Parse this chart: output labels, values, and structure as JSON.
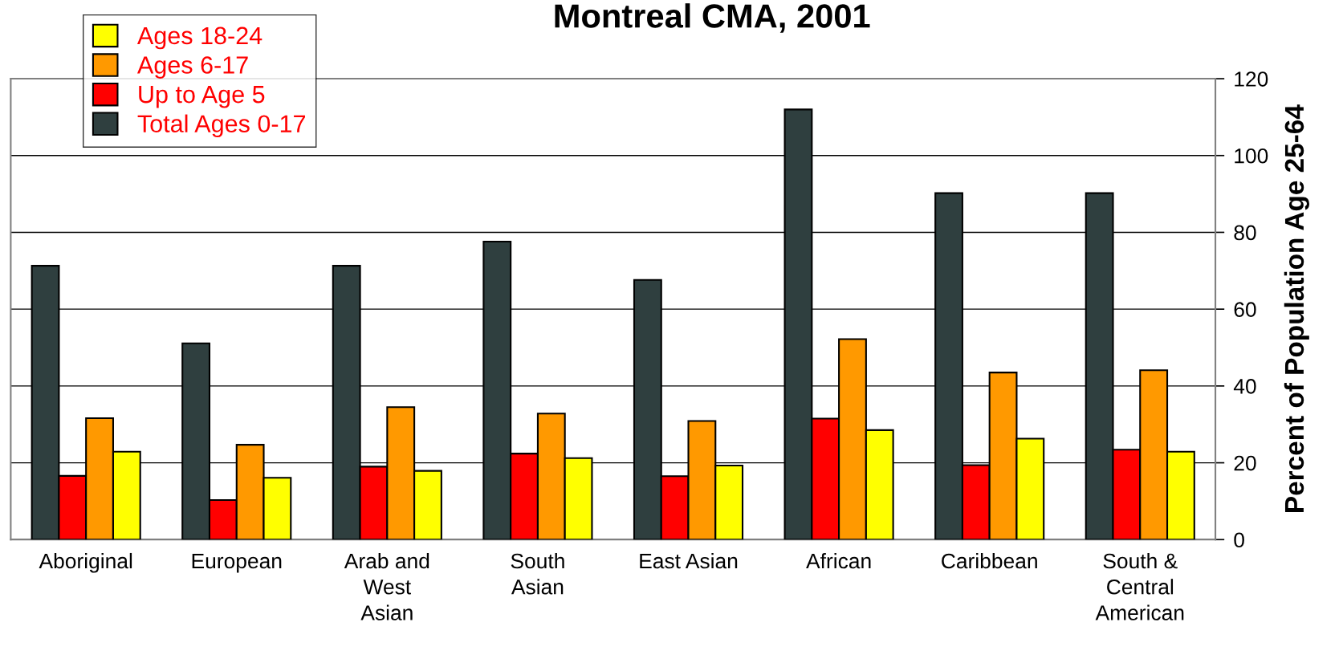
{
  "chart_data": {
    "type": "bar",
    "title": "Montreal CMA, 2001",
    "ylabel": "Percent of Population Age 25-64",
    "categories": [
      "Aboriginal",
      "European",
      "Arab and\nWest\nAsian",
      "South\nAsian",
      "East Asian",
      "African",
      "Caribbean",
      "South &\nCentral\nAmerican"
    ],
    "series": [
      {
        "name": "Total Ages 0-17",
        "color": "#2f3f3f",
        "values": [
          71.3,
          51.1,
          71.3,
          77.6,
          67.6,
          112,
          90.2,
          90.2
        ]
      },
      {
        "name": "Up to Age 5",
        "color": "#ff0000",
        "values": [
          16.6,
          10.3,
          19,
          22.4,
          16.5,
          31.5,
          19.4,
          23.4
        ]
      },
      {
        "name": "Ages 6-17",
        "color": "#ff9900",
        "values": [
          31.6,
          24.7,
          34.5,
          32.8,
          30.9,
          52.2,
          43.5,
          44.1
        ]
      },
      {
        "name": "Ages 18-24",
        "color": "#ffff00",
        "values": [
          22.9,
          16.1,
          17.9,
          21.2,
          19.3,
          28.5,
          26.3,
          22.9
        ]
      }
    ],
    "ylim": [
      0,
      120
    ],
    "yticks": [
      0,
      20,
      40,
      60,
      80,
      100,
      120
    ],
    "grid": "y",
    "legend": "top left"
  }
}
